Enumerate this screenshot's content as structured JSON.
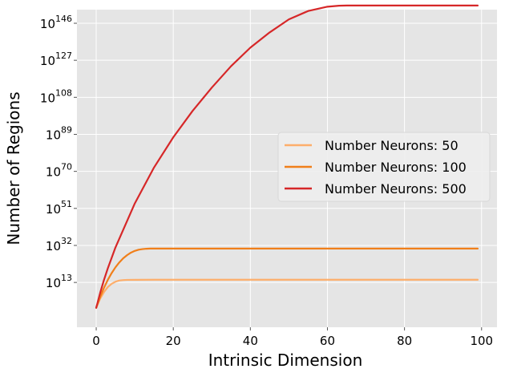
{
  "chart_data": {
    "type": "line",
    "title": "",
    "xlabel": "Intrinsic Dimension",
    "ylabel": "Number of Regions",
    "xlim": [
      -5,
      104
    ],
    "ylog_exponent_lim": [
      -10,
      153
    ],
    "y_scale": "log10",
    "grid": true,
    "background": "#e5e5e5",
    "legend_placement": "center-right",
    "x_ticks": [
      {
        "value": 0,
        "label": "0"
      },
      {
        "value": 20,
        "label": "20"
      },
      {
        "value": 40,
        "label": "40"
      },
      {
        "value": 60,
        "label": "60"
      },
      {
        "value": 80,
        "label": "80"
      },
      {
        "value": 100,
        "label": "100"
      }
    ],
    "y_ticks": [
      {
        "exponent": 13,
        "base": "10",
        "power": "13"
      },
      {
        "exponent": 32,
        "base": "10",
        "power": "32"
      },
      {
        "exponent": 51,
        "base": "10",
        "power": "51"
      },
      {
        "exponent": 70,
        "base": "10",
        "power": "70"
      },
      {
        "exponent": 89,
        "base": "10",
        "power": "89"
      },
      {
        "exponent": 108,
        "base": "10",
        "power": "108"
      },
      {
        "exponent": 127,
        "base": "10",
        "power": "127"
      },
      {
        "exponent": 146,
        "base": "10",
        "power": "146"
      }
    ],
    "series": [
      {
        "name": "Number Neurons: 50",
        "color": "#fdae6b",
        "x": [
          0,
          1,
          2,
          3,
          4,
          5,
          6,
          7,
          8,
          10,
          15,
          20,
          40,
          60,
          80,
          99
        ],
        "log10_y": [
          0.0,
          4.6,
          8.0,
          10.6,
          12.3,
          13.4,
          14.0,
          14.2,
          14.3,
          14.35,
          14.4,
          14.4,
          14.4,
          14.4,
          14.4,
          14.4
        ]
      },
      {
        "name": "Number Neurons: 100",
        "color": "#f07f1a",
        "x": [
          0,
          1,
          2,
          3,
          4,
          5,
          6,
          7,
          8,
          9,
          10,
          11,
          12,
          13,
          14,
          15,
          20,
          40,
          60,
          80,
          99
        ],
        "log10_y": [
          0.0,
          5.5,
          10.2,
          14.3,
          17.8,
          20.8,
          23.3,
          25.4,
          27.0,
          28.3,
          29.2,
          29.8,
          30.1,
          30.3,
          30.4,
          30.4,
          30.4,
          30.4,
          30.4,
          30.4,
          30.4
        ]
      },
      {
        "name": "Number Neurons: 500",
        "color": "#d62728",
        "x": [
          0,
          1,
          2,
          3,
          5,
          10,
          15,
          20,
          25,
          30,
          35,
          40,
          45,
          50,
          55,
          60,
          63,
          65,
          70,
          80,
          99
        ],
        "log10_y": [
          0.0,
          7.5,
          14.2,
          20.2,
          31.0,
          53.5,
          72.0,
          87.5,
          101.0,
          113.0,
          124.0,
          133.5,
          141.3,
          148.0,
          152.3,
          154.5,
          155.0,
          155.1,
          155.1,
          155.1,
          155.1
        ]
      }
    ]
  }
}
